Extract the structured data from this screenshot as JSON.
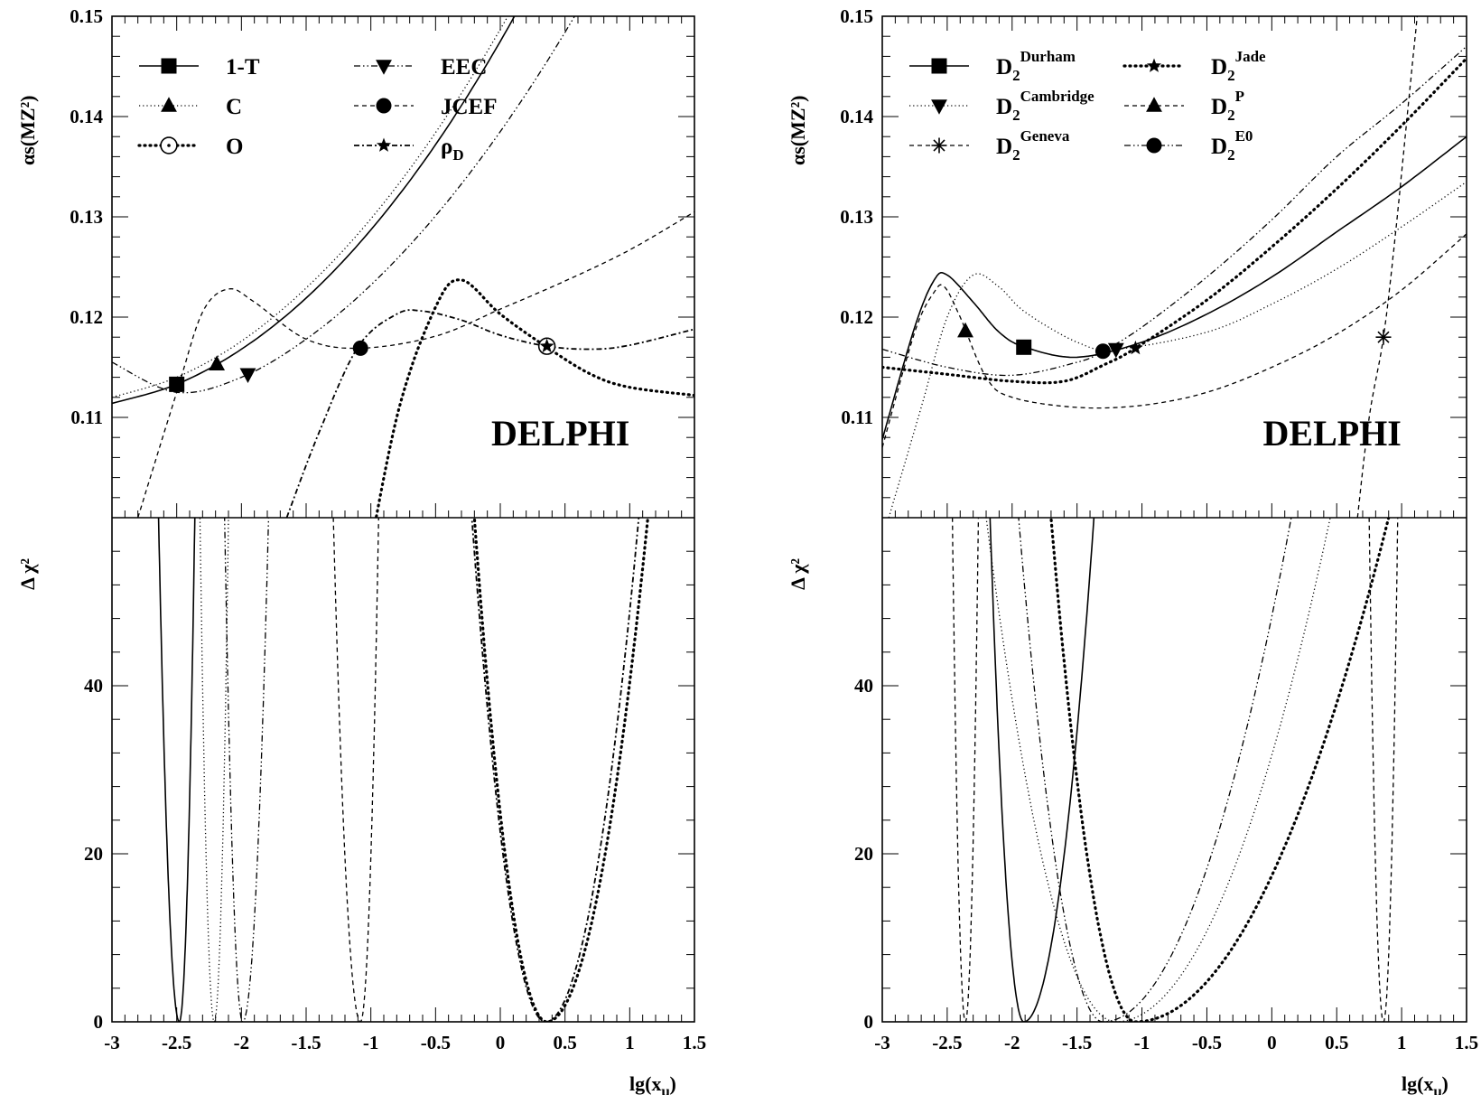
{
  "chart_data": [
    {
      "type": "line",
      "panel": "left",
      "label": "DELPHI",
      "xlabel_main": "lg(x",
      "xlabel_sub": "μ",
      "xlabel_end": ")",
      "top": {
        "ylabel": "αs(MZ²)",
        "ylim": [
          0.1,
          0.15
        ],
        "yticks": [
          "0.11",
          "0.12",
          "0.13",
          "0.14",
          "0.15"
        ],
        "legend_columns": 2,
        "series": [
          {
            "name": "1-T",
            "style": "solid",
            "marker": "square",
            "x": [
              -3.0,
              -2.5,
              -2.0,
              -1.5,
              -1.0,
              -0.5,
              0.0,
              0.5,
              1.0
            ],
            "y": [
              0.1114,
              0.1133,
              0.1168,
              0.1219,
              0.1287,
              0.1372,
              0.1475,
              0.1596,
              0.1735
            ],
            "best_fit": [
              -2.5,
              0.1133
            ]
          },
          {
            "name": "C",
            "style": "dotted",
            "marker": "triangle-up",
            "x": [
              -3.0,
              -2.5,
              -2.0,
              -1.5,
              -1.0,
              -0.5,
              0.0,
              0.5,
              1.0
            ],
            "y": [
              0.112,
              0.114,
              0.1176,
              0.1229,
              0.1298,
              0.1384,
              0.1487,
              0.1606,
              0.1742
            ],
            "best_fit": [
              -2.19,
              0.1153
            ]
          },
          {
            "name": "O",
            "style": "dense-dotted",
            "marker": "open-circle-dot",
            "x": [
              -1.1,
              -0.8,
              -0.5,
              -0.3,
              0.0,
              0.36,
              0.7,
              1.0,
              1.5
            ],
            "y": [
              0.09,
              0.11,
              0.121,
              0.1237,
              0.1203,
              0.117,
              0.1143,
              0.113,
              0.1122
            ],
            "best_fit": [
              0.36,
              0.1171
            ]
          },
          {
            "name": "EEC",
            "style": "dash-dot-dot",
            "marker": "triangle-down",
            "x": [
              -3.0,
              -2.5,
              -2.0,
              -1.5,
              -1.0,
              -0.5,
              0.0,
              0.5,
              1.0,
              1.5
            ],
            "y": [
              0.1155,
              0.1125,
              0.114,
              0.1178,
              0.1232,
              0.1301,
              0.1385,
              0.1484,
              0.1598,
              0.1727
            ],
            "best_fit": [
              -1.95,
              0.1143
            ]
          },
          {
            "name": "JCEF",
            "style": "dashed",
            "marker": "filled-circle",
            "x": [
              -2.8,
              -2.5,
              -2.3,
              -2.1,
              -1.9,
              -1.5,
              -1.08,
              -0.5,
              0.0,
              0.5,
              1.0,
              1.5
            ],
            "y": [
              0.1,
              0.1125,
              0.1205,
              0.1228,
              0.1215,
              0.1178,
              0.1169,
              0.1181,
              0.1208,
              0.1236,
              0.1267,
              0.1305
            ],
            "best_fit": [
              -1.08,
              0.1169
            ]
          },
          {
            "name": "ρD",
            "style": "dash-dot-star",
            "marker": "star",
            "x": [
              -1.65,
              -1.4,
              -1.1,
              -0.8,
              -0.6,
              -0.3,
              0.0,
              0.36,
              0.7,
              1.0,
              1.5
            ],
            "y": [
              0.1,
              0.1085,
              0.117,
              0.1203,
              0.1206,
              0.1197,
              0.1182,
              0.1171,
              0.1168,
              0.1172,
              0.1188
            ],
            "best_fit": [
              0.36,
              0.1171
            ]
          }
        ]
      },
      "bottom": {
        "ylabel": "Δ χ²",
        "ylim": [
          0,
          60
        ],
        "yticks": [
          "0",
          "20",
          "40"
        ],
        "xlim": [
          -3.0,
          1.5
        ],
        "xticks": [
          "-3",
          "-2.5",
          "-2",
          "-1.5",
          "-1",
          "-0.5",
          "0",
          "0.5",
          "1",
          "1.5"
        ],
        "series": [
          {
            "name": "1-T",
            "style": "solid",
            "min_x": -2.48,
            "half_width_at_60": [
              0.16,
              0.12
            ]
          },
          {
            "name": "C",
            "style": "dotted",
            "min_x": -2.21,
            "half_width_at_60": [
              0.11,
              0.11
            ]
          },
          {
            "name": "EEC",
            "style": "dash-dot-dot",
            "min_x": -1.99,
            "half_width_at_60": [
              0.14,
              0.2
            ]
          },
          {
            "name": "JCEF",
            "style": "dashed",
            "min_x": -1.08,
            "half_width_at_60": [
              0.21,
              0.14
            ]
          },
          {
            "name": "O",
            "style": "dense-dotted",
            "min_x": 0.36,
            "half_width_at_60": [
              0.56,
              0.78
            ]
          },
          {
            "name": "ρD",
            "style": "dash-dot-star",
            "min_x": 0.35,
            "half_width_at_60": [
              0.57,
              0.72
            ]
          }
        ]
      }
    },
    {
      "type": "line",
      "panel": "right",
      "label": "DELPHI",
      "xlabel_main": "lg(x",
      "xlabel_sub": "μ",
      "xlabel_end": ")",
      "top": {
        "ylabel": "αs(MZ²)",
        "ylim": [
          0.1,
          0.15
        ],
        "yticks": [
          "0.11",
          "0.12",
          "0.13",
          "0.14",
          "0.15"
        ],
        "legend_columns": 2,
        "series": [
          {
            "name": "D2Durham",
            "base": "D",
            "sub": "2",
            "sup": "Durham",
            "style": "solid",
            "marker": "square",
            "x": [
              -3.0,
              -2.75,
              -2.6,
              -2.5,
              -2.3,
              -2.1,
              -1.9,
              -1.5,
              -1.0,
              -0.5,
              0.0,
              0.5,
              1.0,
              1.5
            ],
            "y": [
              0.1078,
              0.119,
              0.1237,
              0.1242,
              0.1215,
              0.1185,
              0.117,
              0.116,
              0.1175,
              0.1203,
              0.124,
              0.1285,
              0.133,
              0.138
            ],
            "best_fit": [
              -1.91,
              0.117
            ]
          },
          {
            "name": "D2Cambridge",
            "base": "D",
            "sub": "2",
            "sup": "Cambridge",
            "style": "dotted",
            "marker": "triangle-down",
            "x": [
              -2.95,
              -2.7,
              -2.5,
              -2.3,
              -2.1,
              -1.9,
              -1.5,
              -1.2,
              -0.5,
              0.0,
              0.5,
              1.0,
              1.5
            ],
            "y": [
              0.1,
              0.111,
              0.12,
              0.1242,
              0.123,
              0.1205,
              0.1175,
              0.1168,
              0.1185,
              0.1213,
              0.1248,
              0.129,
              0.1335
            ],
            "best_fit": [
              -1.2,
              0.1168
            ]
          },
          {
            "name": "D2Geneva",
            "base": "D",
            "sub": "2",
            "sup": "Geneva",
            "style": "dashed",
            "marker": "asterisk",
            "x": [
              0.66,
              0.75,
              0.86,
              0.95,
              1.05,
              1.12
            ],
            "y": [
              0.1,
              0.11,
              0.118,
              0.128,
              0.141,
              0.15
            ],
            "best_fit": [
              0.86,
              0.118
            ]
          },
          {
            "name": "D2Jade",
            "base": "D",
            "sub": "2",
            "sup": "Jade",
            "style": "dense-dotted",
            "marker": "star",
            "x": [
              -3.0,
              -2.5,
              -2.0,
              -1.6,
              -1.3,
              -1.05,
              -0.5,
              0.0,
              0.5,
              1.0,
              1.5
            ],
            "y": [
              0.115,
              0.1143,
              0.1136,
              0.1136,
              0.1152,
              0.1169,
              0.1217,
              0.127,
              0.1328,
              0.1391,
              0.1458
            ],
            "best_fit": [
              -1.05,
              0.1169
            ]
          },
          {
            "name": "D2P",
            "base": "D",
            "sub": "2",
            "sup": "P",
            "style": "dashed",
            "marker": "triangle-up",
            "x": [
              -3.0,
              -2.75,
              -2.6,
              -2.52,
              -2.4,
              -2.2,
              -2.0,
              -1.5,
              -1.0,
              -0.5,
              0.0,
              0.5,
              1.0,
              1.5
            ],
            "y": [
              0.107,
              0.1185,
              0.1225,
              0.123,
              0.12,
              0.114,
              0.112,
              0.111,
              0.1112,
              0.1125,
              0.115,
              0.1183,
              0.1227,
              0.1283
            ],
            "best_fit": [
              -2.36,
              0.1186
            ]
          },
          {
            "name": "D2E0",
            "base": "D",
            "sub": "2",
            "sup": "E0",
            "style": "dash-dot-dot",
            "marker": "filled-circle",
            "x": [
              -3.0,
              -2.5,
              -2.0,
              -1.5,
              -1.3,
              -1.0,
              -0.5,
              0.0,
              0.5,
              1.0,
              1.5
            ],
            "y": [
              0.1168,
              0.115,
              0.1142,
              0.1155,
              0.1166,
              0.119,
              0.124,
              0.1297,
              0.136,
              0.1413,
              0.147
            ],
            "best_fit": [
              -1.3,
              0.1166
            ]
          }
        ]
      },
      "bottom": {
        "ylabel": "Δ χ²",
        "ylim": [
          0,
          60
        ],
        "yticks": [
          "0",
          "20",
          "40"
        ],
        "xlim": [
          -3.0,
          1.5
        ],
        "xticks": [
          "-3",
          "-2.5",
          "-2",
          "-1.5",
          "-1",
          "-0.5",
          "0",
          "0.5",
          "1",
          "1.5"
        ],
        "series": [
          {
            "name": "D2Durham",
            "style": "solid",
            "min_x": -1.91,
            "half_width_at_60": [
              0.26,
              0.54
            ]
          },
          {
            "name": "D2Cambridge",
            "style": "dotted",
            "min_x": -1.2,
            "half_width_at_60": [
              1.0,
              1.65
            ]
          },
          {
            "name": "D2Geneva",
            "style": "dashed",
            "min_x": 0.86,
            "half_width_at_60": [
              0.11,
              0.11
            ]
          },
          {
            "name": "D2Jade",
            "style": "dense-dotted",
            "min_x": -1.05,
            "half_width_at_60": [
              0.65,
              1.95
            ]
          },
          {
            "name": "D2P",
            "style": "dashed",
            "min_x": -2.36,
            "half_width_at_60": [
              0.1,
              0.1
            ]
          },
          {
            "name": "D2E0",
            "style": "dash-dot-dot",
            "min_x": -1.3,
            "half_width_at_60": [
              0.65,
              1.45
            ]
          }
        ]
      }
    }
  ]
}
